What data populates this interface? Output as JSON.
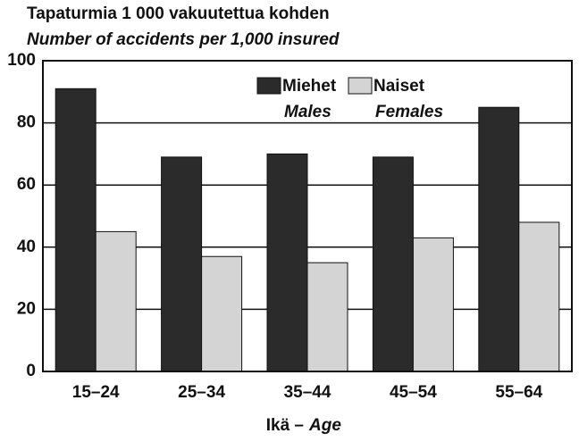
{
  "chart_data": {
    "type": "bar",
    "title": "Tapaturmia 1 000 vakuutettua kohden",
    "subtitle": "Number of accidents per 1,000 insured",
    "xlabel": {
      "fi": "Ikä –",
      "en": "Age"
    },
    "categories": [
      "15–24",
      "25–34",
      "35–44",
      "45–54",
      "55–64"
    ],
    "series": [
      {
        "name": "Miehet",
        "name_en": "Males",
        "color": "#2b2b2b",
        "values": [
          91,
          69,
          70,
          69,
          85
        ]
      },
      {
        "name": "Naiset",
        "name_en": "Females",
        "color": "#d4d4d4",
        "values": [
          45,
          37,
          35,
          43,
          48
        ]
      }
    ],
    "ylim": [
      0,
      100
    ],
    "yticks": [
      0,
      20,
      40,
      60,
      80,
      100
    ],
    "grid": true
  }
}
